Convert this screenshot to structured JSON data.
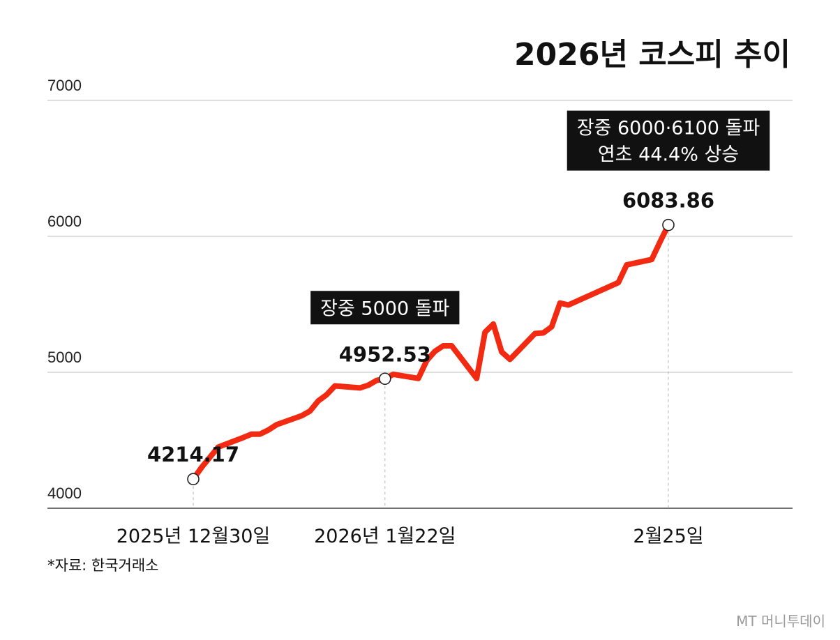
{
  "chart_data": {
    "type": "line",
    "title": "2026년 코스피 추이",
    "ylim": [
      4000,
      7000
    ],
    "yticks": [
      4000,
      5000,
      6000,
      7000
    ],
    "grid": true,
    "line_color": "#f22a12",
    "x": [
      "2025-12-30",
      "2025-12-31",
      "2026-01-02",
      "2026-01-05",
      "2026-01-06",
      "2026-01-07",
      "2026-01-08",
      "2026-01-09",
      "2026-01-12",
      "2026-01-13",
      "2026-01-14",
      "2026-01-15",
      "2026-01-16",
      "2026-01-19",
      "2026-01-20",
      "2026-01-21",
      "2026-01-22",
      "2026-01-23",
      "2026-01-26",
      "2026-01-27",
      "2026-01-28",
      "2026-01-29",
      "2026-01-30",
      "2026-02-02",
      "2026-02-03",
      "2026-02-04",
      "2026-02-05",
      "2026-02-06",
      "2026-02-09",
      "2026-02-10",
      "2026-02-11",
      "2026-02-12",
      "2026-02-13",
      "2026-02-19",
      "2026-02-20",
      "2026-02-23",
      "2026-02-24",
      "2026-02-25"
    ],
    "values": [
      4214.17,
      4300,
      4450,
      4520,
      4545,
      4545,
      4575,
      4615,
      4680,
      4715,
      4790,
      4835,
      4900,
      4885,
      4905,
      4940,
      4952.53,
      4985,
      4955,
      5085,
      5155,
      5195,
      5195,
      4955,
      5295,
      5355,
      5150,
      5095,
      5285,
      5290,
      5335,
      5510,
      5495,
      5660,
      5790,
      5830,
      5960,
      6083.86
    ],
    "xtick_labels": [
      {
        "index": 0,
        "label": "2025년 12월30일"
      },
      {
        "index": 16,
        "label": "2026년 1월22일"
      },
      {
        "index": 37,
        "label": "2월25일"
      }
    ],
    "point_labels": [
      {
        "index": 0,
        "label": "4214.17"
      },
      {
        "index": 16,
        "label": "4952.53"
      },
      {
        "index": 37,
        "label": "6083.86"
      }
    ],
    "annotations": [
      {
        "index": 16,
        "lines": [
          "장중 5000 돌파"
        ]
      },
      {
        "index": 37,
        "lines": [
          "장중 6000·6100 돌파",
          "연초 44.4% 상승"
        ]
      }
    ]
  },
  "source_note": "*자료: 한국거래소",
  "brand": "MT 머니투데이"
}
